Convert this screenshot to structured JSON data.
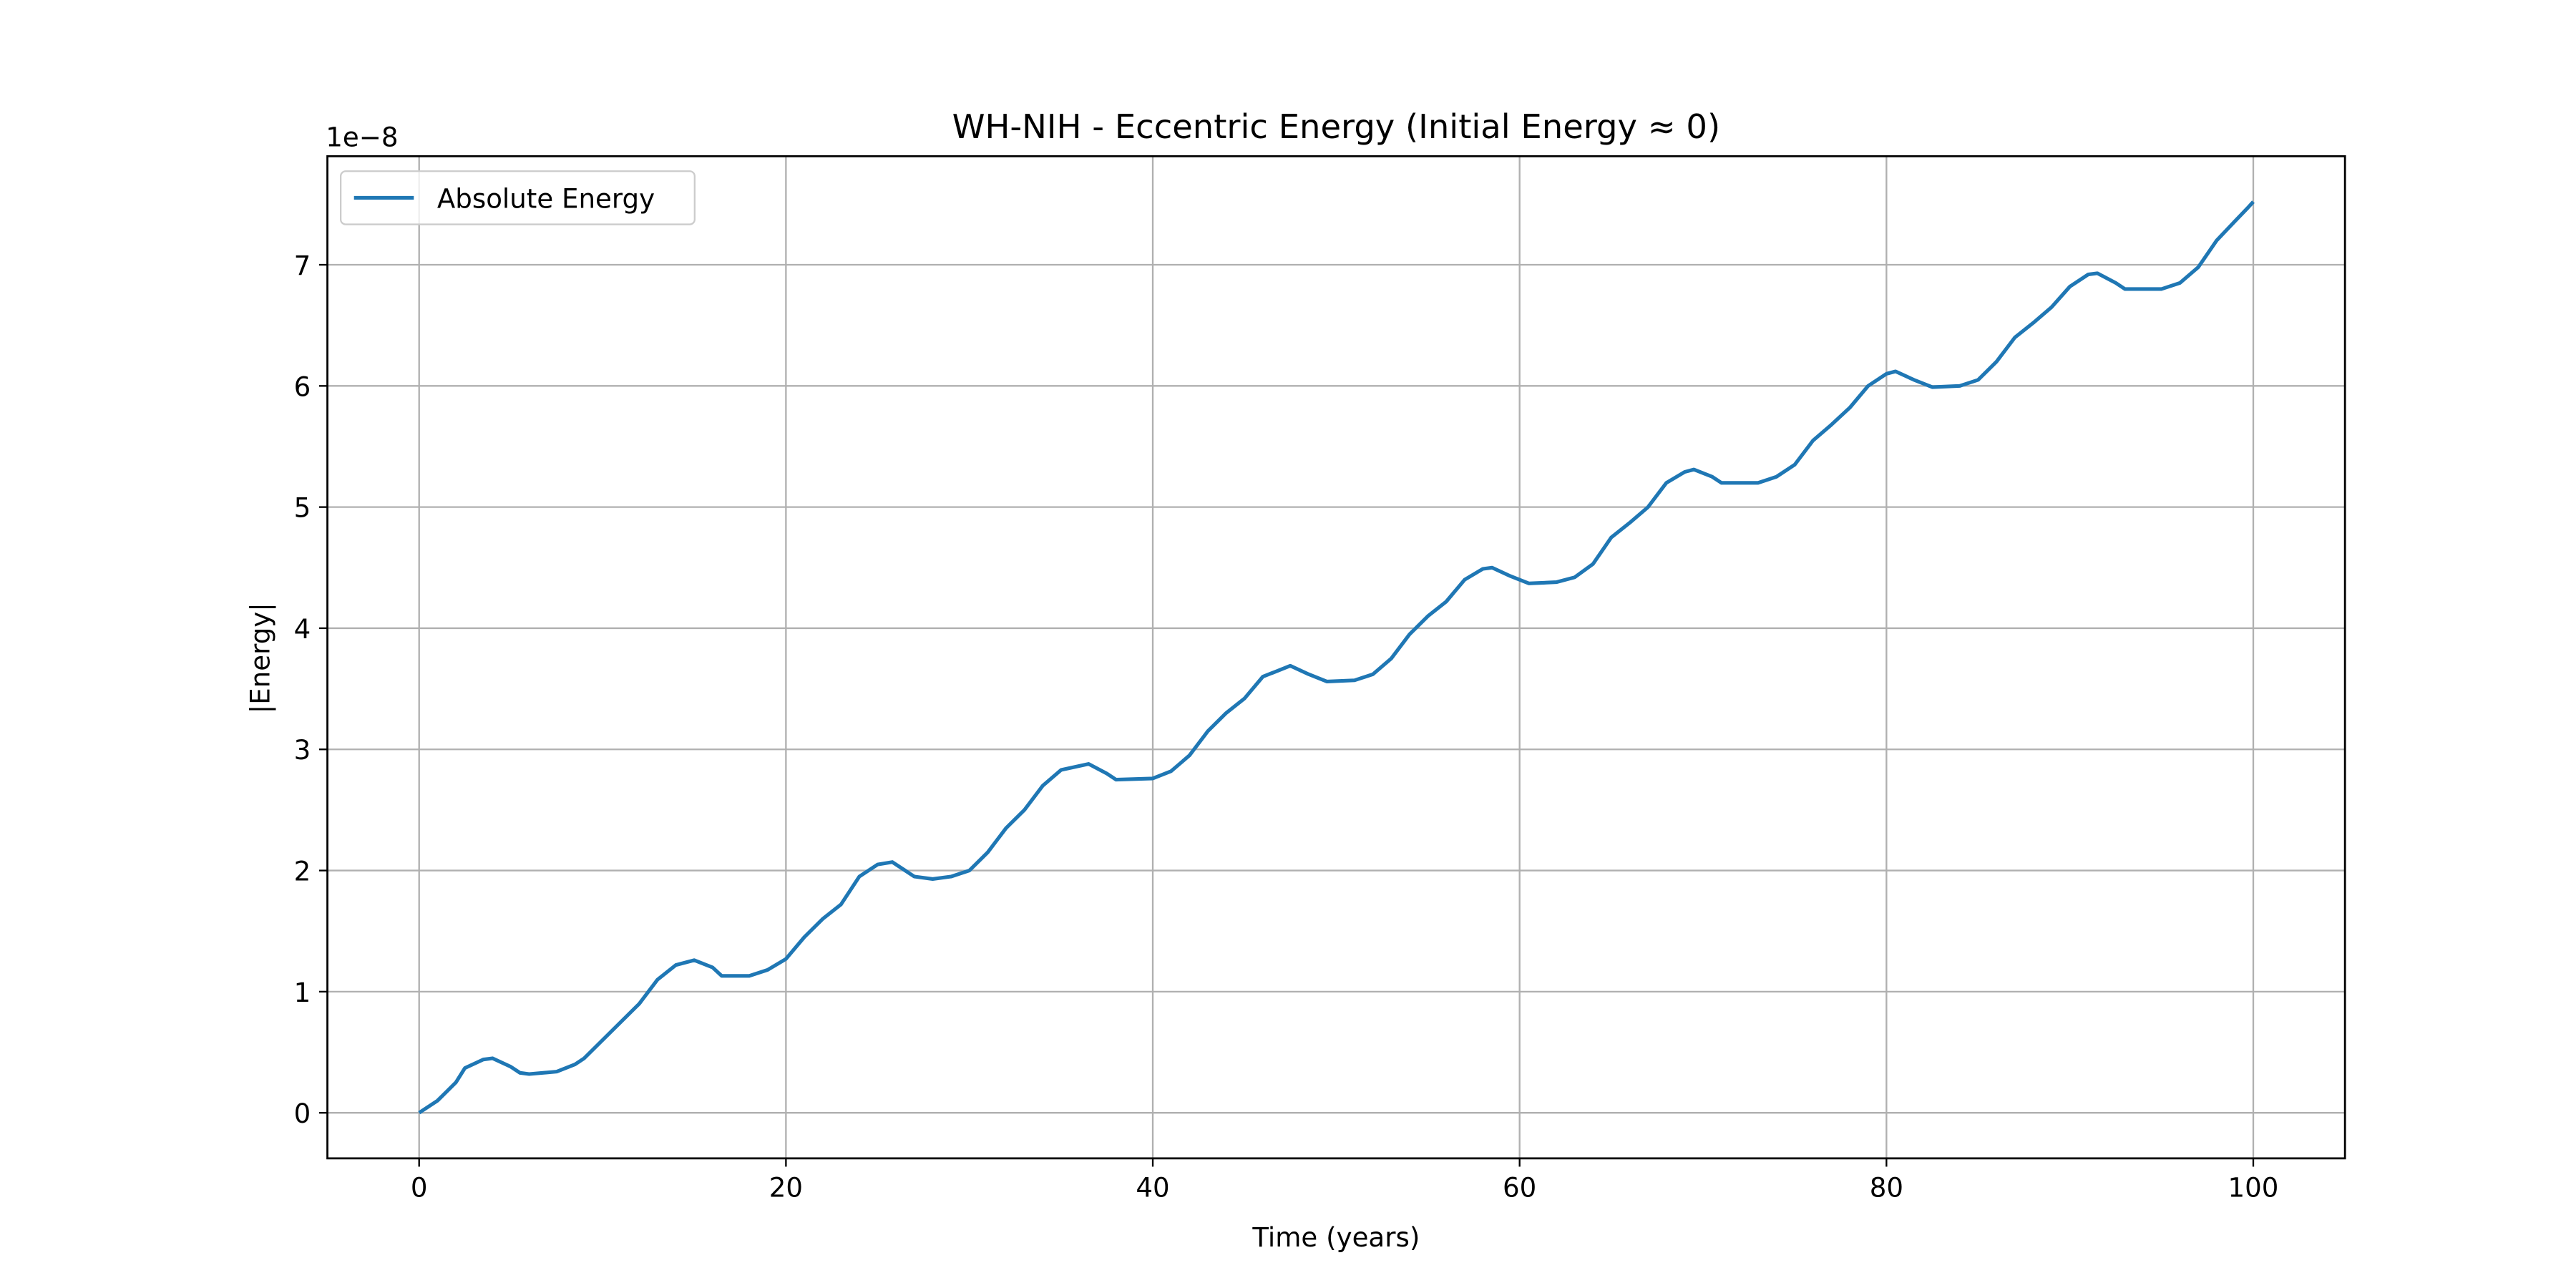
{
  "chart_data": {
    "type": "line",
    "title": "WH-NIH - Eccentric Energy (Initial Energy ≈ 0)",
    "x_label": "Time (years)",
    "y_label": "|Energy|",
    "y_offset_label": "1e−8",
    "x": [
      0,
      1,
      2,
      2.5,
      3.5,
      4,
      5,
      5.5,
      6,
      7.5,
      8.5,
      9,
      10,
      11,
      12,
      13,
      14,
      15,
      16,
      16.5,
      18,
      19,
      20,
      21,
      22,
      23,
      24,
      25,
      25.8,
      26.5,
      27,
      28,
      29,
      30,
      31,
      32,
      33,
      34,
      35,
      36.5,
      37.5,
      38,
      40,
      41,
      42,
      43,
      44,
      45,
      46,
      47.5,
      48.5,
      49.5,
      51,
      52,
      53,
      54,
      55,
      56,
      57,
      58,
      58.5,
      59.5,
      60.5,
      62,
      63,
      64,
      65,
      66,
      67,
      68,
      69,
      69.5,
      70.5,
      71,
      73,
      74,
      75,
      76,
      77,
      78,
      79,
      80,
      80.5,
      81.5,
      82.5,
      84,
      85,
      86,
      87,
      88,
      89,
      90,
      91,
      91.5,
      92.5,
      93,
      95,
      96,
      97,
      98,
      99,
      99.7,
      100
    ],
    "series": [
      {
        "name": "Absolute Energy",
        "color": "#1f77b4",
        "values": [
          0,
          0.1,
          0.25,
          0.37,
          0.44,
          0.45,
          0.38,
          0.33,
          0.32,
          0.34,
          0.4,
          0.45,
          0.6,
          0.75,
          0.9,
          1.1,
          1.22,
          1.26,
          1.2,
          1.13,
          1.13,
          1.18,
          1.27,
          1.45,
          1.6,
          1.72,
          1.95,
          2.05,
          2.07,
          2.0,
          1.95,
          1.93,
          1.95,
          2.0,
          2.15,
          2.35,
          2.5,
          2.7,
          2.83,
          2.88,
          2.8,
          2.75,
          2.76,
          2.82,
          2.95,
          3.15,
          3.3,
          3.42,
          3.6,
          3.69,
          3.62,
          3.56,
          3.57,
          3.62,
          3.75,
          3.95,
          4.1,
          4.22,
          4.4,
          4.49,
          4.5,
          4.43,
          4.37,
          4.38,
          4.42,
          4.53,
          4.75,
          4.87,
          5.0,
          5.2,
          5.29,
          5.31,
          5.25,
          5.2,
          5.2,
          5.25,
          5.35,
          5.55,
          5.68,
          5.82,
          6.0,
          6.1,
          6.12,
          6.05,
          5.99,
          6.0,
          6.05,
          6.2,
          6.4,
          6.52,
          6.65,
          6.82,
          6.92,
          6.93,
          6.85,
          6.8,
          6.8,
          6.85,
          6.98,
          7.2,
          7.36,
          7.47,
          7.52
        ]
      }
    ],
    "xlim": [
      -5,
      105
    ],
    "ylim": [
      -0.376,
      7.896
    ],
    "xticks": [
      0,
      20,
      40,
      60,
      80,
      100
    ],
    "yticks": [
      0,
      1,
      2,
      3,
      4,
      5,
      6,
      7
    ],
    "grid": true,
    "legend": "upper left"
  }
}
